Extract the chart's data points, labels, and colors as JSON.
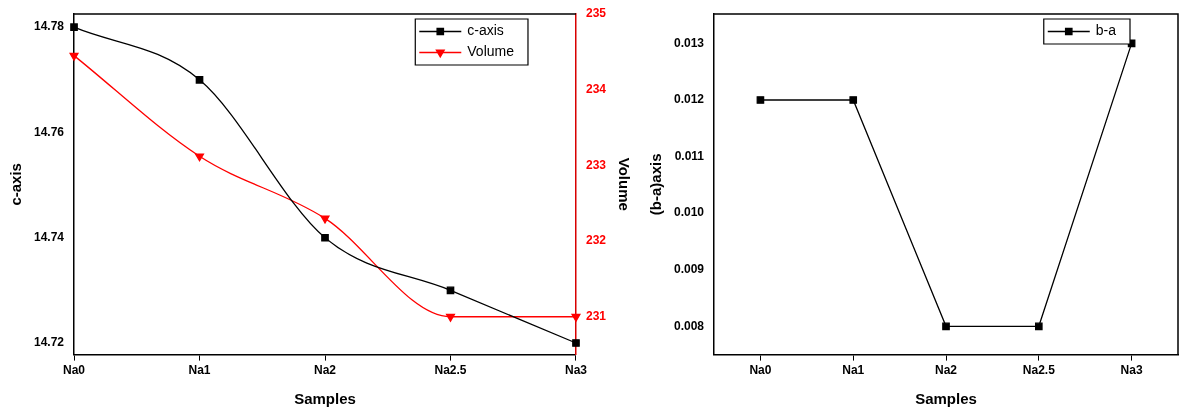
{
  "chart_data": [
    {
      "type": "line",
      "categories": [
        "Na0",
        "Na1",
        "Na2",
        "Na2.5",
        "Na3"
      ],
      "xlabel": "Samples",
      "ylabel": "c-axis",
      "y2label": "Volume",
      "ylim": [
        14.7178,
        14.7825
      ],
      "yticks": [
        14.72,
        14.74,
        14.76,
        14.78
      ],
      "y2lim": [
        230.5,
        235
      ],
      "y2ticks": [
        231,
        232,
        233,
        234,
        235
      ],
      "legend": "top right",
      "grid": false,
      "series": [
        {
          "name": "c-axis",
          "color": "#000000",
          "marker": "square",
          "values": [
            14.78,
            14.77,
            14.74,
            14.73,
            14.72
          ]
        },
        {
          "name": "Volume",
          "color": "#ff0000",
          "marker": "triangle",
          "axis": "y2",
          "values": [
            234.45,
            233.12,
            232.3,
            231.0,
            231.0
          ]
        }
      ]
    },
    {
      "type": "line",
      "categories": [
        "Na0",
        "Na1",
        "Na2",
        "Na2.5",
        "Na3"
      ],
      "xlabel": "Samples",
      "ylabel": "(b-a)axis",
      "ylim": [
        0.0075,
        0.01352
      ],
      "yticks": [
        0.008,
        0.009,
        {
          "value": 0.01,
          "label": "0.010"
        },
        0.011,
        0.012,
        0.013
      ],
      "legend": "top right",
      "grid": false,
      "marker": "square",
      "series": [
        {
          "name": "b-a",
          "color": "#000000",
          "values": [
            0.012,
            0.012,
            0.008,
            0.008,
            0.013
          ]
        }
      ]
    }
  ]
}
